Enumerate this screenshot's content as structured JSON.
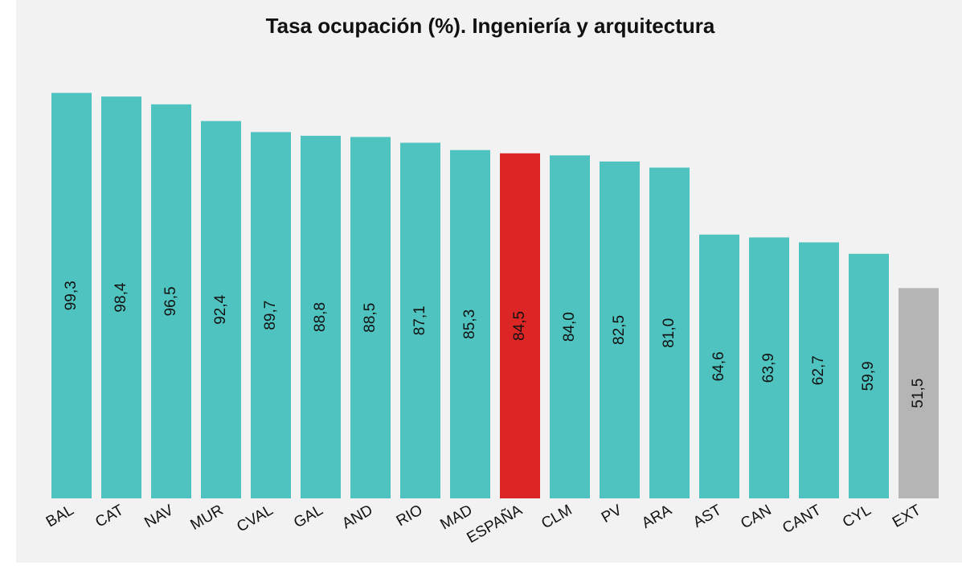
{
  "chart_data": {
    "type": "bar",
    "title": "Tasa ocupación (%). Ingeniería y arquitectura",
    "categories": [
      "BAL",
      "CAT",
      "NAV",
      "MUR",
      "CVAL",
      "GAL",
      "AND",
      "RIO",
      "MAD",
      "ESPAÑA",
      "CLM",
      "PV",
      "ARA",
      "AST",
      "CAN",
      "CANT",
      "CYL",
      "EXT"
    ],
    "values": [
      99.3,
      98.4,
      96.5,
      92.4,
      89.7,
      88.8,
      88.5,
      87.1,
      85.3,
      84.5,
      84.0,
      82.5,
      81.0,
      64.6,
      63.9,
      62.7,
      59.9,
      51.5
    ],
    "value_labels": [
      "99,3",
      "98,4",
      "96,5",
      "92,4",
      "89,7",
      "88,8",
      "88,5",
      "87,1",
      "85,3",
      "84,5",
      "84,0",
      "82,5",
      "81,0",
      "64,6",
      "63,9",
      "62,7",
      "59,9",
      "51,5"
    ],
    "colors": [
      "#4fc3bf",
      "#4fc3bf",
      "#4fc3bf",
      "#4fc3bf",
      "#4fc3bf",
      "#4fc3bf",
      "#4fc3bf",
      "#4fc3bf",
      "#4fc3bf",
      "#dc2626",
      "#4fc3bf",
      "#4fc3bf",
      "#4fc3bf",
      "#4fc3bf",
      "#4fc3bf",
      "#4fc3bf",
      "#4fc3bf",
      "#b5b5b5"
    ],
    "ylim": [
      0,
      100
    ]
  }
}
